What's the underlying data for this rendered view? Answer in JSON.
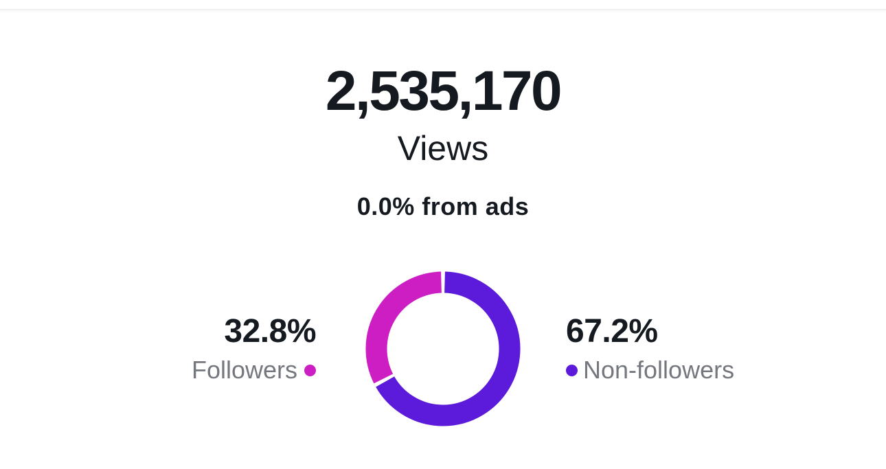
{
  "metric": {
    "value": "2,535,170",
    "label": "Views",
    "ads_note": "0.0% from ads"
  },
  "chart_data": {
    "type": "pie",
    "donut": true,
    "categories": [
      "Non-followers",
      "Followers"
    ],
    "values": [
      67.2,
      32.8
    ],
    "unit": "%",
    "colors": [
      "#5C1ADA",
      "#CC1EC2"
    ],
    "start_angle_deg": 0,
    "direction": "clockwise",
    "gap_deg": 3,
    "legend_position": "sides"
  },
  "legend": {
    "followers": {
      "percent": "32.8%",
      "label": "Followers"
    },
    "non_followers": {
      "percent": "67.2%",
      "label": "Non-followers"
    }
  },
  "colors": {
    "text_primary": "#151a20",
    "text_secondary": "#74777d",
    "divider": "#f1f1f2",
    "background": "#ffffff"
  }
}
